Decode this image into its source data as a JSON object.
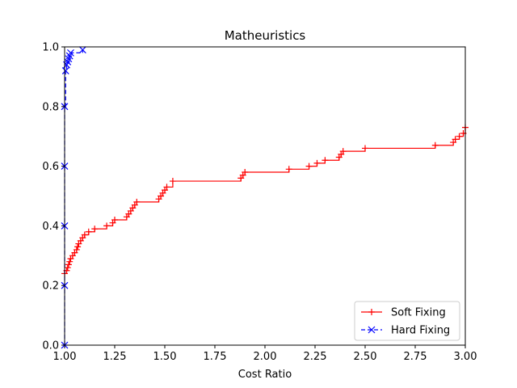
{
  "chart_data": {
    "type": "line",
    "title": "Matheuristics",
    "xlabel": "Cost Ratio",
    "ylabel": "",
    "xlim": [
      1.0,
      3.0
    ],
    "ylim": [
      0.0,
      1.0
    ],
    "x_ticks": [
      "1.00",
      "1.25",
      "1.50",
      "1.75",
      "2.00",
      "2.25",
      "2.50",
      "2.75",
      "3.00"
    ],
    "y_ticks": [
      "0.0",
      "0.2",
      "0.4",
      "0.6",
      "0.8",
      "1.0"
    ],
    "grid": false,
    "legend_position": "lower-right",
    "series": [
      {
        "name": "Soft Fixing",
        "color": "#ff0000",
        "linestyle": "solid",
        "marker": "plus",
        "step": true,
        "x": [
          1.0,
          1.01,
          1.015,
          1.02,
          1.025,
          1.03,
          1.04,
          1.05,
          1.06,
          1.065,
          1.07,
          1.08,
          1.09,
          1.1,
          1.12,
          1.15,
          1.21,
          1.24,
          1.25,
          1.31,
          1.32,
          1.33,
          1.34,
          1.35,
          1.36,
          1.47,
          1.48,
          1.49,
          1.5,
          1.51,
          1.54,
          1.88,
          1.89,
          1.9,
          2.12,
          2.22,
          2.26,
          2.3,
          2.37,
          2.38,
          2.39,
          2.5,
          2.85,
          2.94,
          2.95,
          2.97,
          2.99,
          3.0
        ],
        "y": [
          0.24,
          0.25,
          0.26,
          0.27,
          0.28,
          0.29,
          0.3,
          0.31,
          0.32,
          0.33,
          0.34,
          0.35,
          0.36,
          0.37,
          0.38,
          0.39,
          0.4,
          0.41,
          0.42,
          0.43,
          0.44,
          0.45,
          0.46,
          0.47,
          0.48,
          0.49,
          0.5,
          0.51,
          0.52,
          0.53,
          0.55,
          0.56,
          0.57,
          0.58,
          0.59,
          0.6,
          0.61,
          0.62,
          0.63,
          0.64,
          0.65,
          0.66,
          0.67,
          0.68,
          0.69,
          0.7,
          0.71,
          0.73
        ]
      },
      {
        "name": "Hard Fixing",
        "color": "#0000ff",
        "linestyle": "dashed",
        "marker": "x",
        "step": true,
        "x": [
          1.0,
          1.0,
          1.0,
          1.0,
          1.0,
          1.005,
          1.01,
          1.015,
          1.02,
          1.025,
          1.03,
          1.09
        ],
        "y": [
          0.0,
          0.2,
          0.4,
          0.6,
          0.8,
          0.92,
          0.94,
          0.95,
          0.96,
          0.97,
          0.98,
          0.99
        ]
      }
    ]
  }
}
